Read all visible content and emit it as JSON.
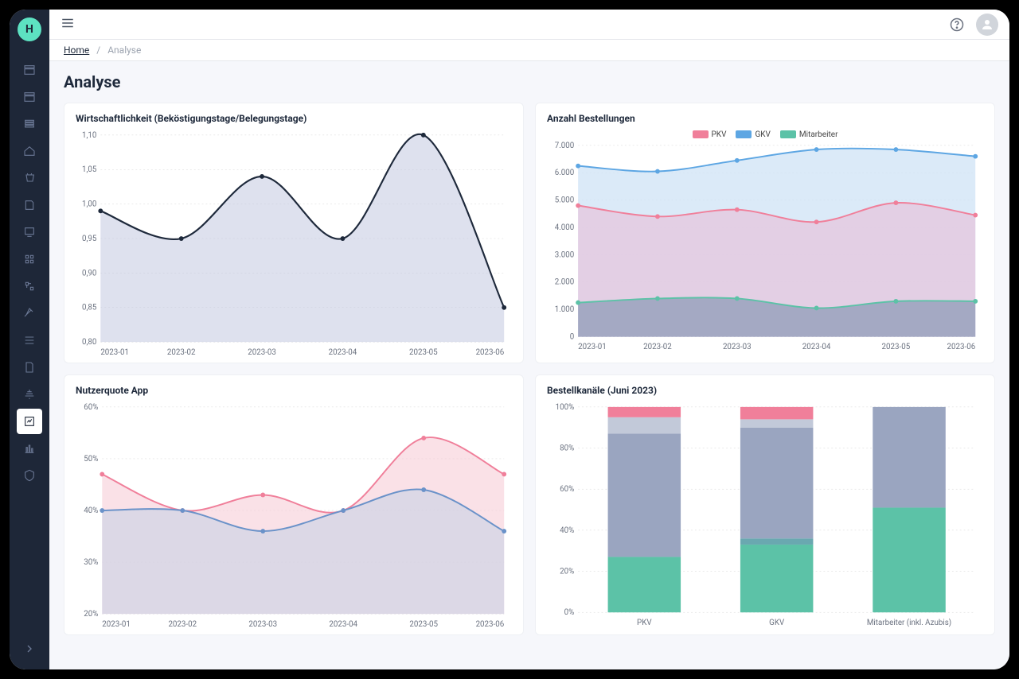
{
  "breadcrumb": {
    "home": "Home",
    "current": "Analyse"
  },
  "page_title": "Analyse",
  "sidebar": {
    "active_index": 13
  },
  "chart1": {
    "title": "Wirtschaftlichkeit (Beköstigungstage/Belegungstage)",
    "type": "area-spline",
    "x_labels": [
      "2023-01",
      "2023-02",
      "2023-03",
      "2023-04",
      "2023-05",
      "2023-06"
    ],
    "values": [
      0.99,
      0.95,
      1.04,
      0.95,
      1.1,
      0.85
    ],
    "ylim": [
      0.8,
      1.1
    ],
    "ytick_step": 0.05,
    "line_color": "#1e293b",
    "fill_color": "#c3c9e0",
    "fill_opacity": 0.55,
    "marker_radius": 3,
    "label_fontsize": 10
  },
  "chart2": {
    "title": "Anzahl Bestellungen",
    "type": "area-multi",
    "x_labels": [
      "2023-01",
      "2023-02",
      "2023-03",
      "2023-04",
      "2023-05",
      "2023-06"
    ],
    "ylim": [
      0,
      7000
    ],
    "ytick_step": 1000,
    "ytick_format": "thousand-dot",
    "legend": [
      {
        "label": "PKV",
        "color": "#f07f9a"
      },
      {
        "label": "GKV",
        "color": "#5da6e3"
      },
      {
        "label": "Mitarbeiter",
        "color": "#5cc2a7"
      }
    ],
    "series": {
      "gkv": {
        "color": "#5da6e3",
        "fill": "#cfe3f5",
        "values": [
          6250,
          6050,
          6450,
          6850,
          6850,
          6600
        ]
      },
      "pkv": {
        "color": "#f07f9a",
        "fill": "#e6c6dd",
        "values": [
          4800,
          4400,
          4650,
          4200,
          4900,
          4450
        ]
      },
      "mitarbeiter": {
        "color": "#5cc2a7",
        "fill": "#8f9cb8",
        "values": [
          1250,
          1400,
          1400,
          1050,
          1300,
          1300
        ]
      }
    },
    "marker_radius": 3
  },
  "chart3": {
    "title": "Nutzerquote App",
    "type": "area-multi",
    "x_labels": [
      "2023-01",
      "2023-02",
      "2023-03",
      "2023-04",
      "2023-05",
      "2023-06"
    ],
    "ylim": [
      20,
      60
    ],
    "ytick_step": 10,
    "ytick_suffix": "%",
    "series": {
      "a": {
        "color": "#f07f9a",
        "fill": "#f6cdd7",
        "values": [
          47,
          40,
          43,
          40,
          54,
          47
        ]
      },
      "b": {
        "color": "#6a92c9",
        "fill": "#c8d2e6",
        "values": [
          40,
          40,
          36,
          40,
          44,
          36
        ]
      }
    },
    "marker_radius": 3
  },
  "chart4": {
    "title": "Bestellkanäle (Juni 2023)",
    "type": "stacked-bar-100",
    "x_labels": [
      "PKV",
      "GKV",
      "Mitarbeiter (inkl. Azubis)"
    ],
    "ylim": [
      0,
      100
    ],
    "ytick_step": 20,
    "ytick_suffix": "%",
    "stack_order": [
      "green",
      "teal",
      "gray",
      "lightgray",
      "pink"
    ],
    "colors": {
      "green": "#5cc2a7",
      "teal": "#6aa8b0",
      "gray": "#9aa5c0",
      "lightgray": "#c2c9d9",
      "pink": "#f07f9a"
    },
    "bars": [
      {
        "green": 27,
        "teal": 0,
        "gray": 60,
        "lightgray": 8,
        "pink": 5
      },
      {
        "green": 33,
        "teal": 3,
        "gray": 54,
        "lightgray": 4,
        "pink": 6
      },
      {
        "green": 51,
        "teal": 0,
        "gray": 49,
        "lightgray": 0,
        "pink": 0
      }
    ],
    "bar_width": 0.55
  }
}
